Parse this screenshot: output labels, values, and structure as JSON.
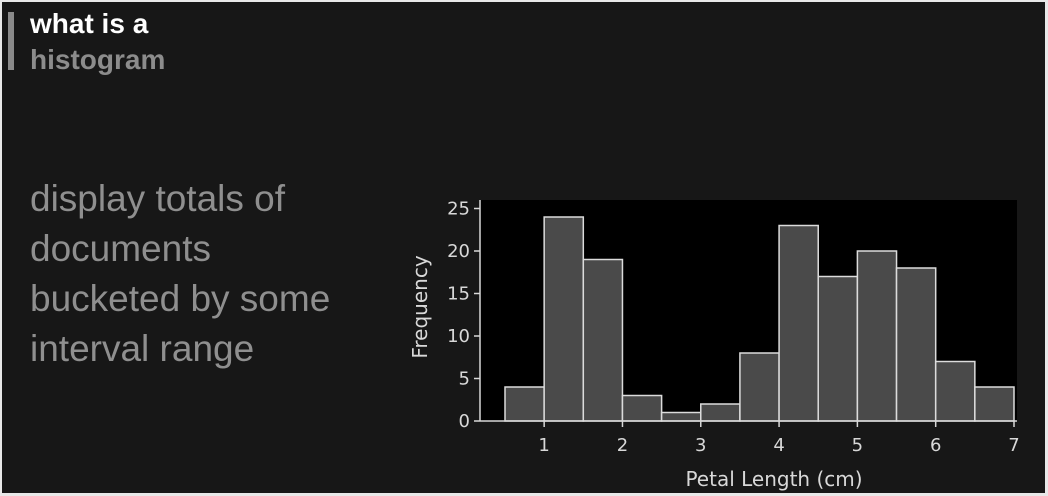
{
  "slide": {
    "title_line1": "what is a",
    "title_line2": "histogram",
    "body": "display totals of documents bucketed by some interval range"
  },
  "colors": {
    "background": "#171717",
    "plot_background": "#000000",
    "bar_fill": "#4a4a4a",
    "bar_stroke": "#dcdcdc",
    "axis": "#d8d8d8"
  },
  "chart_data": {
    "type": "bar",
    "bin_edges": [
      0.5,
      1.0,
      1.5,
      2.0,
      2.5,
      3.0,
      3.5,
      4.0,
      4.5,
      5.0,
      5.5,
      6.0,
      6.5,
      7.0
    ],
    "values": [
      4,
      24,
      19,
      3,
      1,
      2,
      8,
      23,
      17,
      20,
      18,
      7,
      4
    ],
    "xlabel": "Petal Length (cm)",
    "ylabel": "Frequency",
    "xticks": [
      1,
      2,
      3,
      4,
      5,
      6,
      7
    ],
    "yticks": [
      0,
      5,
      10,
      15,
      20,
      25
    ],
    "xlim": [
      0.5,
      7.0
    ],
    "ylim": [
      0,
      26
    ],
    "grid": false
  }
}
